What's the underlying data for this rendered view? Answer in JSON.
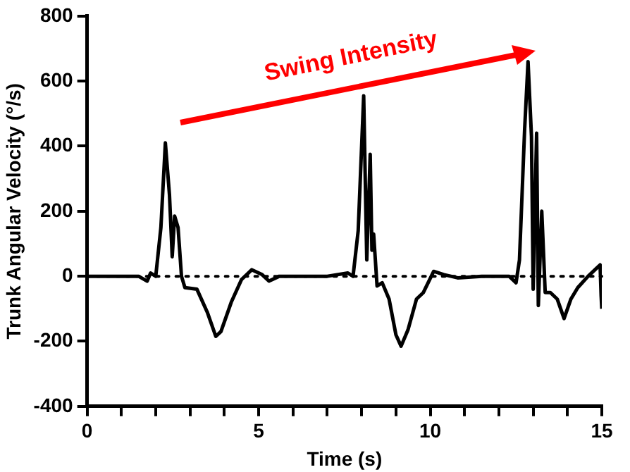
{
  "chart_data": {
    "type": "line",
    "xlabel": "Time (s)",
    "ylabel": "Trunk Angular Velocity (°/s)",
    "annotations": [
      "Swing Intensity"
    ],
    "x": [
      0,
      1.5,
      1.75,
      1.85,
      2.0,
      2.15,
      2.28,
      2.4,
      2.48,
      2.55,
      2.65,
      2.75,
      2.85,
      3.2,
      3.5,
      3.75,
      3.9,
      4.2,
      4.5,
      4.8,
      5.1,
      5.3,
      5.6,
      7.0,
      7.6,
      7.75,
      7.9,
      8.06,
      8.15,
      8.25,
      8.3,
      8.35,
      8.45,
      8.6,
      8.8,
      9.0,
      9.15,
      9.35,
      9.6,
      9.8,
      10.1,
      10.4,
      10.8,
      11.5,
      12.3,
      12.5,
      12.6,
      12.75,
      12.85,
      12.95,
      13.0,
      13.1,
      13.15,
      13.25,
      13.35,
      13.5,
      13.7,
      13.9,
      14.1,
      14.3,
      14.6,
      14.85,
      14.95,
      14.98,
      15
    ],
    "series": [
      {
        "color": "#000000",
        "values": [
          0,
          0,
          -15,
          10,
          0,
          150,
          410,
          250,
          60,
          185,
          150,
          0,
          -35,
          -40,
          -110,
          -185,
          -170,
          -80,
          -10,
          20,
          5,
          -15,
          0,
          0,
          10,
          0,
          140,
          555,
          50,
          375,
          80,
          130,
          -30,
          -20,
          -70,
          -180,
          -215,
          -165,
          -70,
          -50,
          15,
          5,
          -5,
          0,
          0,
          -20,
          50,
          450,
          660,
          430,
          -40,
          440,
          -90,
          200,
          -50,
          -50,
          -70,
          -130,
          -70,
          -35,
          0,
          25,
          35,
          -60,
          -100
        ]
      }
    ],
    "xlim": [
      0,
      15
    ],
    "xticks": [
      0,
      {
        "value": 1,
        "label": null
      },
      {
        "value": 2,
        "label": null
      },
      {
        "value": 3,
        "label": null
      },
      {
        "value": 4,
        "label": null
      },
      5,
      {
        "value": 6,
        "label": null
      },
      {
        "value": 7,
        "label": null
      },
      {
        "value": 8,
        "label": null
      },
      {
        "value": 9,
        "label": null
      },
      10,
      {
        "value": 11,
        "label": null
      },
      {
        "value": 12,
        "label": null
      },
      {
        "value": 13,
        "label": null
      },
      {
        "value": 14,
        "label": null
      },
      15
    ],
    "ylim": [
      -400,
      800
    ],
    "yticks": [
      -400,
      -200,
      0,
      200,
      400,
      600,
      800
    ],
    "ref_lines": [
      {
        "axis": "y",
        "value": 0,
        "color": "#000000",
        "line_style": "dotted"
      }
    ],
    "grid": false,
    "legend": false,
    "marker": "none",
    "line_style": "solid"
  }
}
